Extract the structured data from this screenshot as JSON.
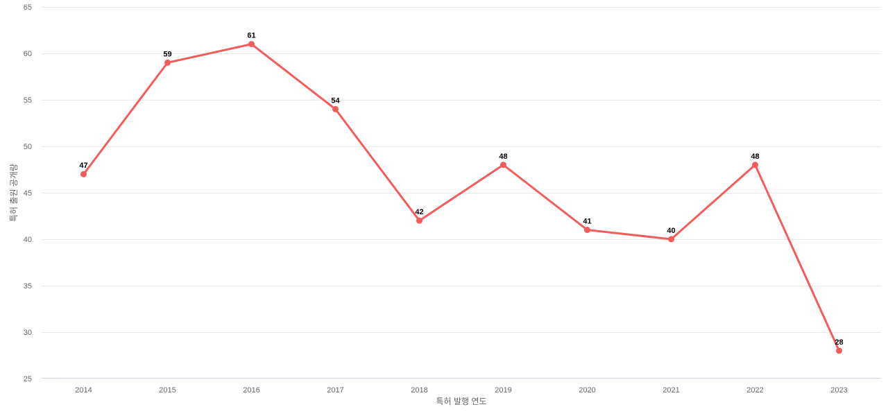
{
  "chart_data": {
    "type": "line",
    "title": "",
    "xlabel": "특허 발행 연도",
    "ylabel": "특허 출원 공개량",
    "categories": [
      "2014",
      "2015",
      "2016",
      "2017",
      "2018",
      "2019",
      "2020",
      "2021",
      "2022",
      "2023"
    ],
    "values": [
      47,
      59,
      61,
      54,
      42,
      48,
      41,
      40,
      48,
      28
    ],
    "ylim": [
      25,
      65
    ],
    "ytick_step": 5,
    "grid": "horizontal",
    "legend": "none",
    "data_labels_visible": true,
    "colors": {
      "line": "#f45b5b",
      "marker": "#f45b5b",
      "gridline": "#e8e8e8",
      "axis_line": "#ccd6eb",
      "tick_label": "#666666",
      "axis_title": "#666666",
      "data_label": "#000000",
      "background": "#ffffff"
    }
  }
}
